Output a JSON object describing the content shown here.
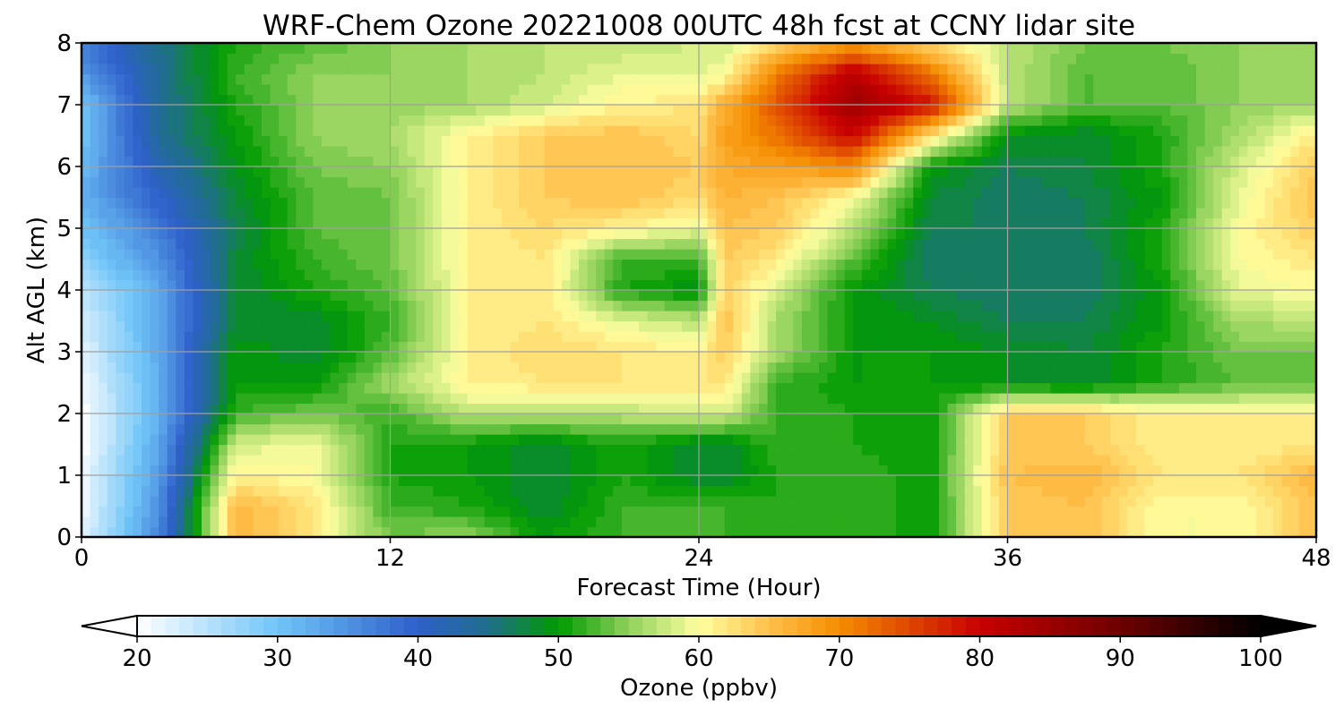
{
  "chart_data": {
    "type": "heatmap",
    "title": "WRF-Chem Ozone  20221008 00UTC 48h fcst at CCNY lidar site",
    "xlabel": "Forecast Time (Hour)",
    "ylabel": "Alt AGL (km)",
    "xlim": [
      0,
      48
    ],
    "ylim": [
      0,
      8
    ],
    "xticks": [
      0,
      12,
      24,
      36,
      48
    ],
    "xtick_labels": [
      "0",
      "12",
      "24",
      "36",
      "48"
    ],
    "yticks": [
      0,
      1,
      2,
      3,
      4,
      5,
      6,
      7,
      8
    ],
    "ytick_labels": [
      "0",
      "1",
      "2",
      "3",
      "4",
      "5",
      "6",
      "7",
      "8"
    ],
    "grid": true,
    "z_units": "ppbv",
    "x": [
      0,
      3,
      6,
      9,
      12,
      15,
      18,
      21,
      24,
      25,
      27,
      30,
      33,
      36,
      39,
      42,
      45,
      48
    ],
    "y": [
      0,
      0.5,
      1,
      1.5,
      2,
      2.5,
      3,
      3.5,
      4,
      4.5,
      5,
      5.5,
      6,
      6.5,
      7,
      7.5,
      8
    ],
    "z": [
      [
        22,
        36,
        66,
        62,
        54,
        55,
        50,
        52,
        52,
        52,
        51,
        52,
        50,
        64,
        65,
        60,
        60,
        65
      ],
      [
        21,
        35,
        66,
        62,
        52,
        51,
        48,
        52,
        52,
        52,
        51,
        52,
        50,
        64,
        65,
        60,
        60,
        65
      ],
      [
        21,
        34,
        61,
        60,
        51,
        50,
        48,
        51,
        48,
        48,
        51,
        52,
        50,
        65,
        66,
        62,
        62,
        66
      ],
      [
        20,
        33,
        58,
        60,
        51,
        50,
        48,
        51,
        48,
        48,
        52,
        51,
        50,
        64,
        64,
        61,
        61,
        62
      ],
      [
        20,
        32,
        52,
        54,
        52,
        57,
        57,
        57,
        58,
        58,
        52,
        51,
        50,
        64,
        64,
        61,
        61,
        61
      ],
      [
        21,
        32,
        50,
        50,
        56,
        61,
        62,
        62,
        62,
        62,
        52,
        50,
        50,
        49,
        48,
        51,
        53,
        53
      ],
      [
        22,
        33,
        50,
        48,
        53,
        61,
        63,
        62,
        61,
        64,
        56,
        50,
        50,
        49,
        48,
        51,
        54,
        54
      ],
      [
        23,
        33,
        48,
        48,
        52,
        61,
        62,
        59,
        57,
        65,
        56,
        50,
        49,
        47,
        47,
        50,
        56,
        57
      ],
      [
        24,
        33,
        48,
        51,
        53,
        61,
        62,
        51,
        49,
        64,
        58,
        50,
        47,
        46,
        46,
        50,
        59,
        60
      ],
      [
        28,
        35,
        48,
        52,
        54,
        61,
        62,
        52,
        52,
        64,
        62,
        53,
        46,
        46,
        46,
        51,
        60,
        62
      ],
      [
        30,
        37,
        47,
        53,
        54,
        61,
        63,
        61,
        59,
        65,
        64,
        57,
        47,
        47,
        47,
        51,
        60,
        64
      ],
      [
        32,
        40,
        48,
        53,
        54,
        61,
        64,
        65,
        63,
        66,
        65,
        60,
        48,
        46,
        47,
        50,
        59,
        65
      ],
      [
        31,
        42,
        49,
        54,
        55,
        61,
        64,
        65,
        64,
        67,
        68,
        70,
        50,
        47,
        48,
        51,
        58,
        64
      ],
      [
        30,
        44,
        50,
        55,
        56,
        61,
        64,
        65,
        63,
        68,
        72,
        80,
        62,
        49,
        48,
        51,
        56,
        62
      ],
      [
        30,
        44,
        51,
        55,
        55,
        56,
        58,
        61,
        62,
        67,
        74,
        85,
        79,
        57,
        53,
        53,
        55,
        56
      ],
      [
        34,
        44,
        52,
        55,
        55,
        56,
        57,
        59,
        59,
        60,
        71,
        82,
        72,
        57,
        53,
        53,
        55,
        56
      ],
      [
        37,
        45,
        51,
        53,
        55,
        56,
        57,
        57,
        58,
        58,
        63,
        68,
        63,
        57,
        54,
        54,
        55,
        56
      ]
    ],
    "colorbar": {
      "label": "Ozone  (ppbv)",
      "min": 20,
      "max": 100,
      "step": 1,
      "ticks": [
        20,
        30,
        40,
        50,
        60,
        70,
        80,
        90,
        100
      ],
      "tick_labels": [
        "20",
        "30",
        "40",
        "50",
        "60",
        "70",
        "80",
        "90",
        "100"
      ],
      "extend": "both",
      "under_color": "#ffffff",
      "over_color": "#000000",
      "color_stops": [
        {
          "value": 20,
          "color": "#ffffff"
        },
        {
          "value": 30,
          "color": "#70c5f8"
        },
        {
          "value": 40,
          "color": "#2e5fca"
        },
        {
          "value": 45,
          "color": "#1f6f8b"
        },
        {
          "value": 50,
          "color": "#009a00"
        },
        {
          "value": 55,
          "color": "#8fd15a"
        },
        {
          "value": 60,
          "color": "#ffffa0"
        },
        {
          "value": 65,
          "color": "#ffc04a"
        },
        {
          "value": 70,
          "color": "#f58d00"
        },
        {
          "value": 80,
          "color": "#c80000"
        },
        {
          "value": 90,
          "color": "#6e0000"
        },
        {
          "value": 100,
          "color": "#000000"
        }
      ]
    }
  }
}
